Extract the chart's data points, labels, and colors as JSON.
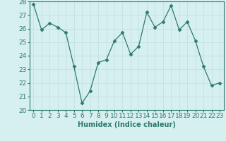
{
  "x": [
    0,
    1,
    2,
    3,
    4,
    5,
    6,
    7,
    8,
    9,
    10,
    11,
    12,
    13,
    14,
    15,
    16,
    17,
    18,
    19,
    20,
    21,
    22,
    23
  ],
  "y": [
    27.8,
    25.9,
    26.4,
    26.1,
    25.7,
    23.2,
    20.5,
    21.4,
    23.5,
    23.7,
    25.1,
    25.7,
    24.1,
    24.7,
    27.2,
    26.1,
    26.5,
    27.7,
    25.9,
    26.5,
    25.1,
    23.2,
    21.8,
    22.0
  ],
  "line_color": "#2d7a6e",
  "marker": "D",
  "marker_size": 2.5,
  "bg_color": "#d6efef",
  "grid_color": "#c0dede",
  "xlabel": "Humidex (Indice chaleur)",
  "xlim": [
    -0.5,
    23.5
  ],
  "ylim": [
    20,
    28
  ],
  "yticks": [
    20,
    21,
    22,
    23,
    24,
    25,
    26,
    27,
    28
  ],
  "xticks": [
    0,
    1,
    2,
    3,
    4,
    5,
    6,
    7,
    8,
    9,
    10,
    11,
    12,
    13,
    14,
    15,
    16,
    17,
    18,
    19,
    20,
    21,
    22,
    23
  ],
  "label_fontsize": 7,
  "tick_fontsize": 6.5
}
